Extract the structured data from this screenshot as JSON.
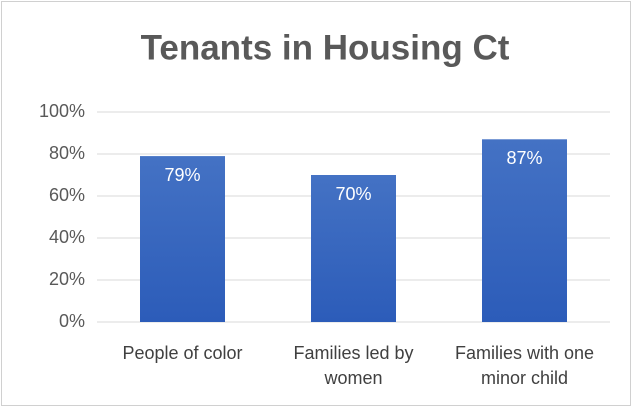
{
  "chart_data": {
    "type": "bar",
    "title": "Tenants in Housing Ct",
    "categories": [
      "People of color",
      "Families led by women",
      "Families with one minor child"
    ],
    "values": [
      79,
      70,
      87
    ],
    "value_labels": [
      "79%",
      "70%",
      "87%"
    ],
    "color": "#4472c4",
    "ylim": [
      0,
      100
    ],
    "yticks": [
      {
        "value": 0,
        "label": "0%"
      },
      {
        "value": 20,
        "label": "20%"
      },
      {
        "value": 40,
        "label": "40%"
      },
      {
        "value": 60,
        "label": "60%"
      },
      {
        "value": 80,
        "label": "80%"
      },
      {
        "value": 100,
        "label": "100%"
      }
    ],
    "grid": true
  }
}
